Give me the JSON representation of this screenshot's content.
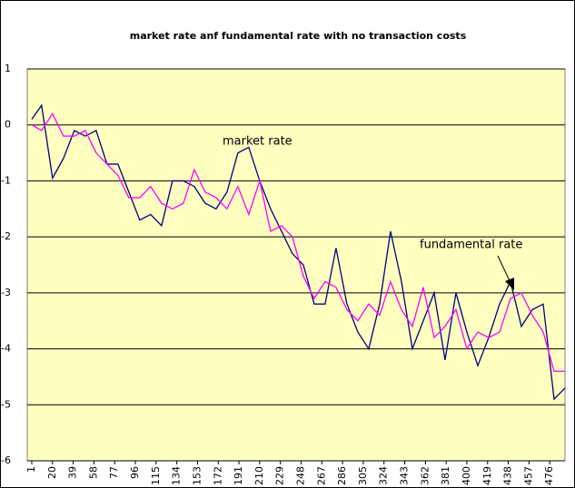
{
  "chart_data": {
    "type": "line",
    "title": "market rate anf fundamental rate with no transaction costs",
    "x": [
      1,
      10,
      20,
      30,
      40,
      50,
      60,
      70,
      80,
      90,
      100,
      110,
      120,
      130,
      140,
      150,
      160,
      170,
      180,
      190,
      200,
      210,
      220,
      230,
      240,
      250,
      260,
      270,
      280,
      290,
      300,
      310,
      320,
      330,
      340,
      350,
      360,
      370,
      380,
      390,
      400,
      410,
      420,
      430,
      440,
      450,
      460,
      470,
      480,
      490
    ],
    "series": [
      {
        "name": "market rate",
        "color": "#000080",
        "values": [
          0.1,
          0.35,
          -0.95,
          -0.6,
          -0.1,
          -0.2,
          -0.1,
          -0.7,
          -0.7,
          -1.2,
          -1.7,
          -1.6,
          -1.8,
          -1.0,
          -1.0,
          -1.1,
          -1.4,
          -1.5,
          -1.2,
          -0.5,
          -0.4,
          -1.0,
          -1.5,
          -1.9,
          -2.3,
          -2.5,
          -3.2,
          -3.2,
          -2.2,
          -3.2,
          -3.7,
          -4.0,
          -3.2,
          -1.9,
          -2.8,
          -4.0,
          -3.5,
          -3.0,
          -4.2,
          -3.0,
          -3.7,
          -4.3,
          -3.8,
          -3.2,
          -2.8,
          -3.6,
          -3.3,
          -3.2,
          -4.9,
          -4.7
        ]
      },
      {
        "name": "fundamental rate",
        "color": "#FF00FF",
        "values": [
          0.0,
          -0.1,
          0.2,
          -0.2,
          -0.2,
          -0.1,
          -0.5,
          -0.7,
          -0.9,
          -1.3,
          -1.3,
          -1.1,
          -1.4,
          -1.5,
          -1.4,
          -0.8,
          -1.2,
          -1.3,
          -1.5,
          -1.1,
          -1.6,
          -1.0,
          -1.9,
          -1.8,
          -2.0,
          -2.7,
          -3.1,
          -2.8,
          -2.9,
          -3.3,
          -3.5,
          -3.2,
          -3.4,
          -2.8,
          -3.3,
          -3.6,
          -2.9,
          -3.8,
          -3.6,
          -3.3,
          -4.0,
          -3.7,
          -3.8,
          -3.7,
          -3.1,
          -3.0,
          -3.4,
          -3.7,
          -4.4,
          -4.4
        ]
      }
    ],
    "xlim": [
      1,
      490
    ],
    "xticks": [
      1,
      20,
      39,
      58,
      77,
      96,
      115,
      134,
      153,
      172,
      191,
      210,
      229,
      248,
      267,
      286,
      305,
      324,
      343,
      362,
      381,
      400,
      419,
      438,
      457,
      476
    ],
    "ylim": [
      -6,
      1
    ],
    "yticks": [
      -6,
      -5,
      -4,
      -3,
      -2,
      -1,
      0,
      1
    ],
    "grid": true,
    "plot_background": "#FFFFC0"
  }
}
